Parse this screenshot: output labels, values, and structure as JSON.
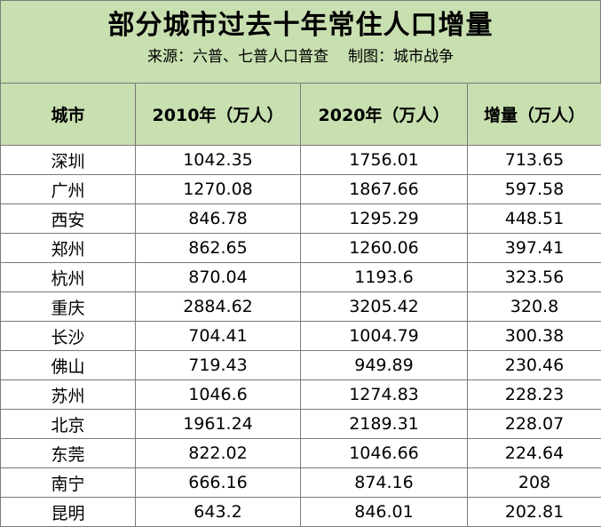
{
  "header": {
    "title": "部分城市过去十年常住人口增量",
    "source": "来源：六普、七普人口普查",
    "credit": "制图：城市战争"
  },
  "columns": [
    "城市",
    "2010年（万人）",
    "2020年（万人）",
    "增量（万人）"
  ],
  "rows": [
    {
      "city": "深圳",
      "y2010": "1042.35",
      "y2020": "1756.01",
      "increase": "713.65"
    },
    {
      "city": "广州",
      "y2010": "1270.08",
      "y2020": "1867.66",
      "increase": "597.58"
    },
    {
      "city": "西安",
      "y2010": "846.78",
      "y2020": "1295.29",
      "increase": "448.51"
    },
    {
      "city": "郑州",
      "y2010": "862.65",
      "y2020": "1260.06",
      "increase": "397.41"
    },
    {
      "city": "杭州",
      "y2010": "870.04",
      "y2020": "1193.6",
      "increase": "323.56"
    },
    {
      "city": "重庆",
      "y2010": "2884.62",
      "y2020": "3205.42",
      "increase": "320.8"
    },
    {
      "city": "长沙",
      "y2010": "704.41",
      "y2020": "1004.79",
      "increase": "300.38"
    },
    {
      "city": "佛山",
      "y2010": "719.43",
      "y2020": "949.89",
      "increase": "230.46"
    },
    {
      "city": "苏州",
      "y2010": "1046.6",
      "y2020": "1274.83",
      "increase": "228.23"
    },
    {
      "city": "北京",
      "y2010": "1961.24",
      "y2020": "2189.31",
      "increase": "228.07"
    },
    {
      "city": "东莞",
      "y2010": "822.02",
      "y2020": "1046.66",
      "increase": "224.64"
    },
    {
      "city": "南宁",
      "y2010": "666.16",
      "y2020": "874.16",
      "increase": "208"
    },
    {
      "city": "昆明",
      "y2010": "643.2",
      "y2020": "846.01",
      "increase": "202.81"
    }
  ],
  "colors": {
    "header_background": "#c8dfb0",
    "grid_line": "#7a7a7a"
  }
}
